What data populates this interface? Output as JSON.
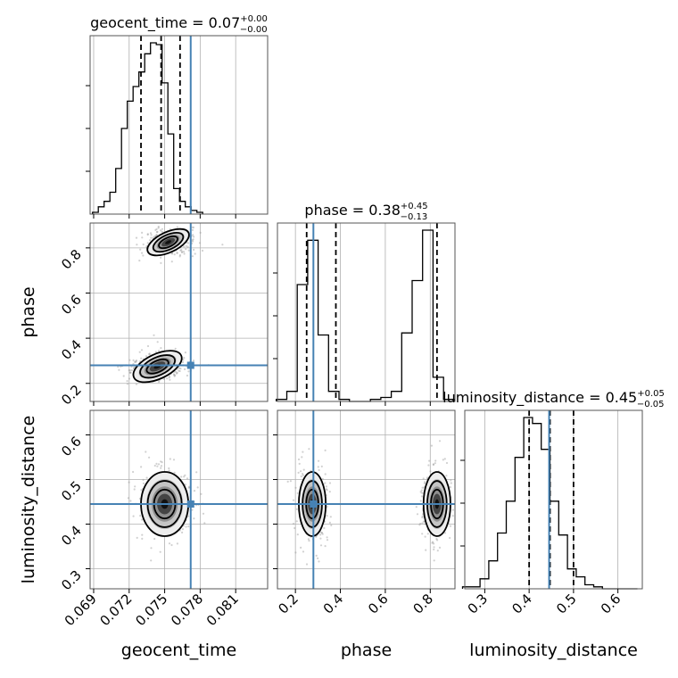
{
  "truth_color": "#4682b4",
  "chart_data": {
    "type": "corner",
    "parameters": [
      "geocent_time",
      "phase",
      "luminosity_distance"
    ],
    "axis_labels": [
      "geocent_time",
      "phase",
      "luminosity_distance"
    ],
    "titles": [
      {
        "text": "geocent_time = 0.07",
        "sup": "+0.00",
        "sub": "−0.00"
      },
      {
        "text": "phase = 0.38",
        "sup": "+0.45",
        "sub": "−0.13"
      },
      {
        "text": "luminosity_distance = 0.45",
        "sup": "+0.05",
        "sub": "−0.05"
      }
    ],
    "ranges": [
      [
        0.0687,
        0.0837
      ],
      [
        0.12,
        0.91
      ],
      [
        0.255,
        0.655
      ]
    ],
    "ticks": [
      [
        "0.069",
        "0.072",
        "0.075",
        "0.078",
        "0.081"
      ],
      [
        "0.2",
        "0.4",
        "0.6",
        "0.8"
      ],
      [
        "0.3",
        "0.4",
        "0.5",
        "0.6"
      ]
    ],
    "truths": [
      0.0772,
      0.28,
      0.445
    ],
    "quantiles": [
      [
        0.073,
        0.0747,
        0.0763
      ],
      [
        0.25,
        0.38,
        0.83
      ],
      [
        0.4,
        0.447,
        0.5
      ]
    ],
    "histograms": [
      {
        "x0": 0.0689,
        "step": 0.00049,
        "counts": [
          1,
          4,
          7,
          12,
          25,
          47,
          62,
          70,
          78,
          88,
          94,
          93,
          72,
          44,
          14,
          7,
          4,
          2,
          1
        ]
      },
      {
        "x0": 0.115,
        "step": 0.0465,
        "counts": [
          1,
          5,
          58,
          80,
          33,
          5,
          1,
          0,
          0,
          1,
          2,
          5,
          34,
          60,
          85,
          12,
          1
        ]
      },
      {
        "x0": 0.25,
        "step": 0.0197,
        "counts": [
          1,
          1,
          5,
          14,
          28,
          44,
          66,
          86,
          83,
          70,
          44,
          27,
          10,
          6,
          2,
          1,
          0,
          0,
          0,
          0
        ]
      }
    ],
    "grid": true,
    "legend": "none"
  }
}
